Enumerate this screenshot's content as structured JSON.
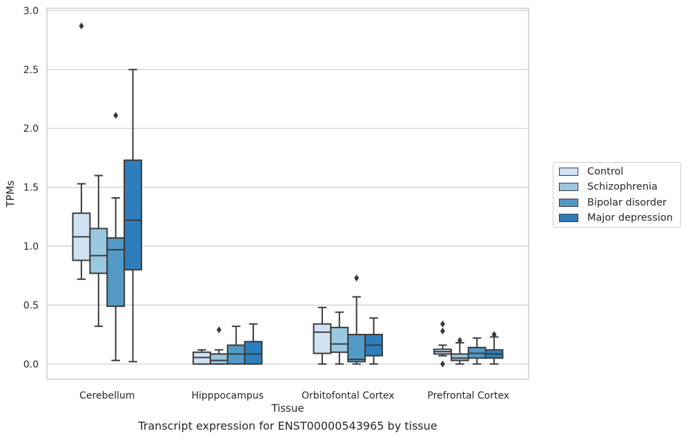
{
  "caption": "Transcript expression for ENST00000543965 by tissue",
  "chart_data": {
    "type": "box",
    "xlabel": "Tissue",
    "ylabel": "TPMs",
    "ylim": [
      -0.13,
      3.02
    ],
    "yticks": [
      "0.0",
      "0.5",
      "1.0",
      "1.5",
      "2.0",
      "2.5",
      "3.0"
    ],
    "grid": true,
    "legend_position": "right",
    "categories": [
      "Cerebellum",
      "Hipppocampus",
      "Orbitofontal Cortex",
      "Prefrontal Cortex"
    ],
    "series": [
      {
        "name": "Control",
        "color": "#d0e1f2",
        "boxes": [
          {
            "whisker_low": 0.72,
            "q1": 0.88,
            "median": 1.08,
            "q3": 1.28,
            "whisker_high": 1.53,
            "outliers": [
              2.87
            ]
          },
          {
            "whisker_low": 0.0,
            "q1": 0.0,
            "median": 0.055,
            "q3": 0.1,
            "whisker_high": 0.12,
            "outliers": []
          },
          {
            "whisker_low": 0.0,
            "q1": 0.09,
            "median": 0.27,
            "q3": 0.34,
            "whisker_high": 0.48,
            "outliers": []
          },
          {
            "whisker_low": 0.07,
            "q1": 0.085,
            "median": 0.105,
            "q3": 0.125,
            "whisker_high": 0.16,
            "outliers": [
              0.34,
              0.28,
              0.0
            ]
          }
        ]
      },
      {
        "name": "Schizophrenia",
        "color": "#9ac8e0",
        "boxes": [
          {
            "whisker_low": 0.32,
            "q1": 0.77,
            "median": 0.92,
            "q3": 1.15,
            "whisker_high": 1.6,
            "outliers": []
          },
          {
            "whisker_low": 0.0,
            "q1": 0.0,
            "median": 0.03,
            "q3": 0.085,
            "whisker_high": 0.12,
            "outliers": [
              0.29
            ]
          },
          {
            "whisker_low": 0.0,
            "q1": 0.1,
            "median": 0.17,
            "q3": 0.31,
            "whisker_high": 0.44,
            "outliers": []
          },
          {
            "whisker_low": 0.0,
            "q1": 0.03,
            "median": 0.05,
            "q3": 0.085,
            "whisker_high": 0.18,
            "outliers": [
              0.2
            ]
          }
        ]
      },
      {
        "name": "Bipolar disorder",
        "color": "#5399c6",
        "boxes": [
          {
            "whisker_low": 0.03,
            "q1": 0.49,
            "median": 0.97,
            "q3": 1.07,
            "whisker_high": 1.41,
            "outliers": [
              2.11
            ]
          },
          {
            "whisker_low": 0.0,
            "q1": 0.0,
            "median": 0.085,
            "q3": 0.16,
            "whisker_high": 0.32,
            "outliers": []
          },
          {
            "whisker_low": 0.0,
            "q1": 0.02,
            "median": 0.04,
            "q3": 0.25,
            "whisker_high": 0.57,
            "outliers": [
              0.73
            ]
          },
          {
            "whisker_low": 0.0,
            "q1": 0.05,
            "median": 0.09,
            "q3": 0.14,
            "whisker_high": 0.22,
            "outliers": []
          }
        ]
      },
      {
        "name": "Major depression",
        "color": "#2e7ebc",
        "boxes": [
          {
            "whisker_low": 0.02,
            "q1": 0.8,
            "median": 1.22,
            "q3": 1.73,
            "whisker_high": 2.5,
            "outliers": []
          },
          {
            "whisker_low": 0.0,
            "q1": 0.0,
            "median": 0.085,
            "q3": 0.19,
            "whisker_high": 0.34,
            "outliers": []
          },
          {
            "whisker_low": 0.0,
            "q1": 0.07,
            "median": 0.16,
            "q3": 0.25,
            "whisker_high": 0.39,
            "outliers": []
          },
          {
            "whisker_low": 0.0,
            "q1": 0.05,
            "median": 0.085,
            "q3": 0.12,
            "whisker_high": 0.23,
            "outliers": [
              0.25
            ]
          }
        ]
      }
    ]
  }
}
